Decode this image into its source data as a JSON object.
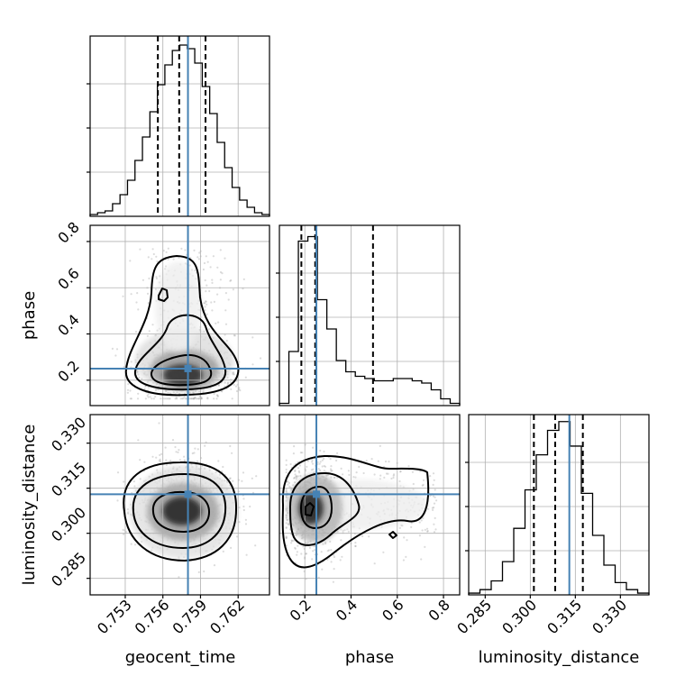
{
  "chart_data": {
    "type": "corner",
    "parameters": [
      "geocent_time",
      "phase",
      "luminosity_distance"
    ],
    "truth": {
      "geocent_time": 0.758,
      "phase": 0.25,
      "luminosity_distance": 0.313
    },
    "colors": {
      "truth": "#4682b4",
      "hist": "#000000",
      "grid": "#b0b0b0"
    },
    "panels": {
      "geocent_time": {
        "range": [
          0.7502,
          0.7645
        ],
        "ticks": [
          0.753,
          0.756,
          0.759,
          0.762
        ],
        "tick_labels": [
          "0.753",
          "0.756",
          "0.759",
          "0.762"
        ],
        "quantiles": [
          0.7556,
          0.7573,
          0.7594
        ],
        "hist_counts": [
          1,
          2,
          3,
          7,
          12,
          20,
          31,
          44,
          58,
          73,
          84,
          92,
          95,
          93,
          85,
          72,
          57,
          41,
          27,
          16,
          9,
          5,
          2,
          1
        ],
        "hist_max": 100
      },
      "phase": {
        "range": [
          0.09,
          0.87
        ],
        "ticks": [
          0.2,
          0.4,
          0.6,
          0.8
        ],
        "tick_labels": [
          "0.2",
          "0.4",
          "0.6",
          "0.8"
        ],
        "quantiles": [
          0.185,
          0.245,
          0.495
        ],
        "hist_counts": [
          1,
          24,
          73,
          75,
          47,
          34,
          20,
          15,
          13,
          12,
          11,
          11,
          12,
          12,
          11,
          10,
          7,
          3,
          1
        ],
        "hist_max": 80
      },
      "luminosity_distance": {
        "range": [
          0.2795,
          0.3395
        ],
        "ticks": [
          0.285,
          0.3,
          0.315,
          0.33
        ],
        "tick_labels": [
          "0.285",
          "0.300",
          "0.315",
          "0.330"
        ],
        "quantiles": [
          0.3012,
          0.3083,
          0.3175
        ],
        "hist_counts": [
          1,
          3,
          8,
          19,
          38,
          60,
          80,
          94,
          99,
          85,
          58,
          34,
          17,
          7,
          3,
          1
        ],
        "hist_max": 103
      }
    },
    "pairs": [
      {
        "x": "geocent_time",
        "y": "phase",
        "centre": [
          0.7579,
          0.22
        ],
        "spread": [
          0.0018,
          0.12
        ]
      },
      {
        "x": "geocent_time",
        "y": "luminosity_distance",
        "centre": [
          0.7579,
          0.3095
        ],
        "spread": [
          0.0018,
          0.008
        ]
      },
      {
        "x": "phase",
        "y": "luminosity_distance",
        "centre": [
          0.22,
          0.3095
        ],
        "spread": [
          0.12,
          0.008
        ]
      }
    ]
  }
}
